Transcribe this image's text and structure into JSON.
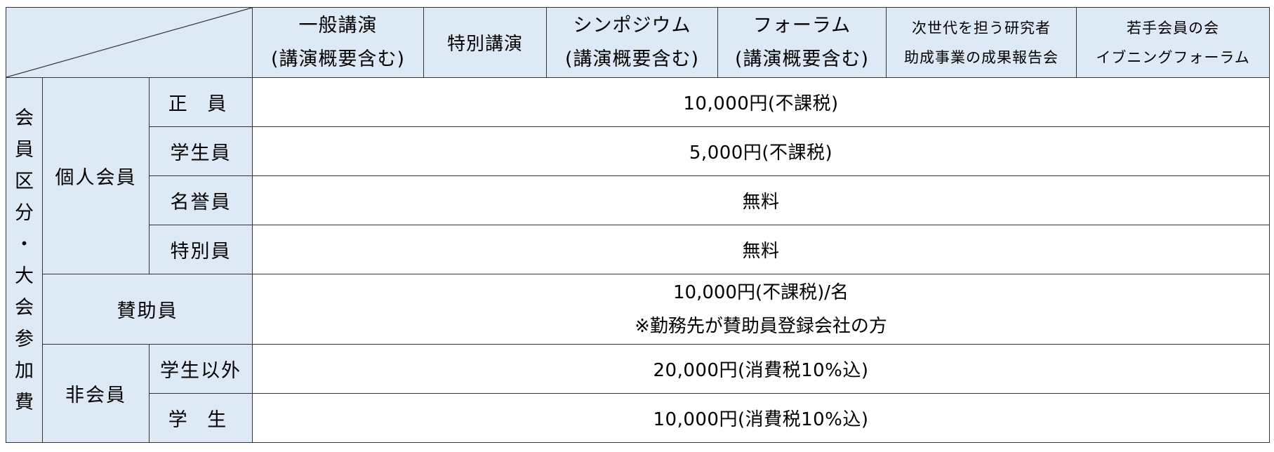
{
  "table": {
    "columns": [
      {
        "lines": [
          "一般講演",
          "(講演概要含む)"
        ]
      },
      {
        "lines": [
          "特別講演"
        ]
      },
      {
        "lines": [
          "シンポジウム",
          "(講演概要含む)"
        ]
      },
      {
        "lines": [
          "フォーラム",
          "(講演概要含む)"
        ]
      },
      {
        "lines": [
          "次世代を担う研究者",
          "助成事業の成果報告会"
        ]
      },
      {
        "lines": [
          "若手会員の会",
          "イブニングフォーラム"
        ]
      }
    ],
    "side_label_chars": [
      "会",
      "員",
      "区",
      "分",
      "・",
      "大",
      "会",
      "参",
      "加",
      "費"
    ],
    "groups": {
      "individual": "個人会員",
      "supporting": "賛助員",
      "non_member": "非会員"
    },
    "rows": {
      "regular": {
        "label": "正 員",
        "fee": "10,000円(不課税)"
      },
      "student": {
        "label": "学生員",
        "fee": "5,000円(不課税)"
      },
      "honorary": {
        "label": "名誉員",
        "fee": "無料"
      },
      "special": {
        "label": "特別員",
        "fee": "無料"
      },
      "supporting": {
        "fee_line1": "10,000円(不課税)/名",
        "fee_line2": "※勤務先が賛助員登録会社の方"
      },
      "non_student": {
        "label": "学生以外",
        "fee": "20,000円(消費税10%込)"
      },
      "non_member_student": {
        "label": "学 生",
        "fee": "10,000円(消費税10%込)"
      }
    }
  }
}
